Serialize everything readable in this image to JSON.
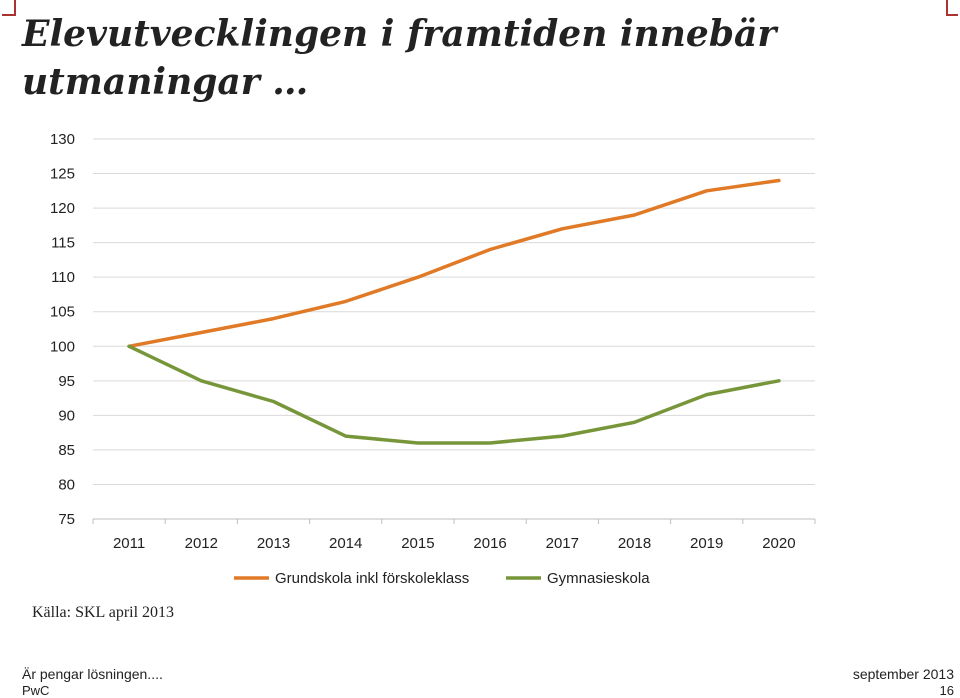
{
  "slide": {
    "title": "Elevutvecklingen i framtiden innebär utmaningar …",
    "source": "Källa: SKL april 2013",
    "footer_left_top": "Är pengar lösningen....",
    "footer_left_bottom": "PwC",
    "footer_right_top": "september 2013",
    "footer_right_bottom": "16"
  },
  "chart_data": {
    "type": "line",
    "title": "",
    "xlabel": "",
    "ylabel": "",
    "x": [
      "2011",
      "2012",
      "2013",
      "2014",
      "2015",
      "2016",
      "2017",
      "2018",
      "2019",
      "2020"
    ],
    "yticks": [
      75,
      80,
      85,
      90,
      95,
      100,
      105,
      110,
      115,
      120,
      125,
      130
    ],
    "ylim": [
      75,
      130
    ],
    "grid": true,
    "legend": "bottom",
    "series": [
      {
        "name": "Grundskola inkl förskoleklass",
        "color": "#e07a27",
        "values": [
          100,
          102,
          104,
          106.5,
          110,
          114,
          117,
          119,
          122.5,
          124
        ]
      },
      {
        "name": "Gymnasieskola",
        "color": "#77963a",
        "values": [
          100,
          95,
          92,
          87,
          86,
          86,
          87,
          89,
          93,
          95
        ]
      }
    ]
  }
}
